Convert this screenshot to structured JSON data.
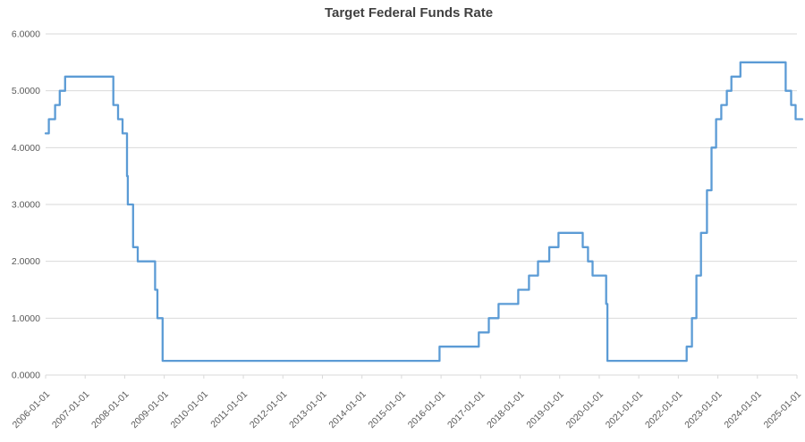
{
  "chart_data": {
    "type": "line",
    "title": "Target Federal Funds Rate",
    "xlabel": "",
    "ylabel": "",
    "ylim": [
      0,
      6
    ],
    "x_range": [
      "2006-01-01",
      "2025-02-20"
    ],
    "grid": "horizontal-only",
    "legend_position": "none",
    "y_tick_labels": [
      "0.0000",
      "1.0000",
      "2.0000",
      "3.0000",
      "4.0000",
      "5.0000",
      "6.0000"
    ],
    "x_tick_labels": [
      "2006-01-01",
      "2007-01-01",
      "2008-01-01",
      "2009-01-01",
      "2010-01-01",
      "2011-01-01",
      "2012-01-01",
      "2013-01-01",
      "2014-01-01",
      "2015-01-01",
      "2016-01-01",
      "2017-01-01",
      "2018-01-01",
      "2019-01-01",
      "2020-01-01",
      "2021-01-01",
      "2022-01-01",
      "2023-01-01",
      "2024-01-01",
      "2025-01-01"
    ],
    "series": [
      {
        "name": "Target Federal Funds Rate",
        "color": "#5B9BD5",
        "step": "after",
        "points": [
          [
            "2006-01-01",
            4.25
          ],
          [
            "2006-01-31",
            4.5
          ],
          [
            "2006-03-28",
            4.75
          ],
          [
            "2006-05-10",
            5.0
          ],
          [
            "2006-06-29",
            5.25
          ],
          [
            "2007-09-18",
            4.75
          ],
          [
            "2007-10-31",
            4.5
          ],
          [
            "2007-12-11",
            4.25
          ],
          [
            "2008-01-22",
            3.5
          ],
          [
            "2008-01-30",
            3.0
          ],
          [
            "2008-03-18",
            2.25
          ],
          [
            "2008-04-30",
            2.0
          ],
          [
            "2008-10-08",
            1.5
          ],
          [
            "2008-10-29",
            1.0
          ],
          [
            "2008-12-16",
            0.25
          ],
          [
            "2015-12-17",
            0.5
          ],
          [
            "2016-12-15",
            0.75
          ],
          [
            "2017-03-16",
            1.0
          ],
          [
            "2017-06-15",
            1.25
          ],
          [
            "2017-12-14",
            1.5
          ],
          [
            "2018-03-22",
            1.75
          ],
          [
            "2018-06-14",
            2.0
          ],
          [
            "2018-09-27",
            2.25
          ],
          [
            "2018-12-20",
            2.5
          ],
          [
            "2019-08-01",
            2.25
          ],
          [
            "2019-09-19",
            2.0
          ],
          [
            "2019-10-31",
            1.75
          ],
          [
            "2020-03-04",
            1.25
          ],
          [
            "2020-03-16",
            0.25
          ],
          [
            "2022-03-17",
            0.5
          ],
          [
            "2022-05-05",
            1.0
          ],
          [
            "2022-06-16",
            1.75
          ],
          [
            "2022-07-28",
            2.5
          ],
          [
            "2022-09-22",
            3.25
          ],
          [
            "2022-11-03",
            4.0
          ],
          [
            "2022-12-15",
            4.5
          ],
          [
            "2023-02-02",
            4.75
          ],
          [
            "2023-03-23",
            5.0
          ],
          [
            "2023-05-04",
            5.25
          ],
          [
            "2023-07-27",
            5.5
          ],
          [
            "2024-09-19",
            5.0
          ],
          [
            "2024-11-08",
            4.75
          ],
          [
            "2024-12-19",
            4.5
          ],
          [
            "2025-02-20",
            4.5
          ]
        ]
      }
    ]
  },
  "style": {
    "line_color": "#5B9BD5",
    "grid_color": "#D9D9D9",
    "tick_color": "#D9D9D9",
    "axis_label_color": "#595959",
    "title_color": "#404040",
    "background_color": "#FFFFFF"
  }
}
